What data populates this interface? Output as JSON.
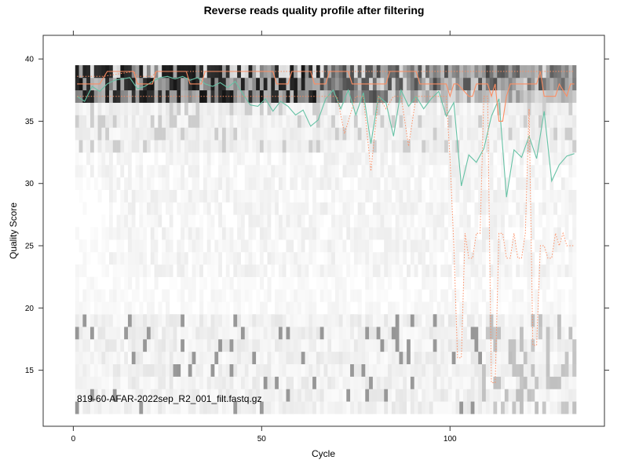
{
  "chart_data": {
    "type": "heatmap",
    "title": "Reverse reads quality profile after filtering",
    "xlabel": "Cycle",
    "ylabel": "Quality Score",
    "annotation": "819-60-AFAR-2022sep_R2_001_filt.fastq.gz",
    "xlim": [
      -8,
      141
    ],
    "ylim": [
      10.5,
      41.9
    ],
    "x_ticks": [
      0,
      50,
      100
    ],
    "y_ticks": [
      15,
      20,
      25,
      30,
      35,
      40
    ],
    "cycles": [
      1,
      133
    ],
    "quality_bins": [
      12,
      13,
      14,
      15,
      16,
      17,
      18,
      19,
      20,
      21,
      22,
      23,
      24,
      25,
      26,
      27,
      28,
      29,
      30,
      31,
      32,
      33,
      34,
      35,
      36,
      37,
      38,
      39
    ],
    "heatmap_shading": "darker cells indicate more reads at a given quality score and cycle",
    "colors": {
      "mean": "#66C2A5",
      "median": "#FC8D62",
      "quartiles": "#FC8D62"
    },
    "series": [
      {
        "key": "mean",
        "style": "solid",
        "x": [
          1,
          3,
          5,
          7,
          9,
          11,
          13,
          15,
          17,
          19,
          21,
          23,
          25,
          27,
          29,
          31,
          33,
          35,
          37,
          39,
          41,
          43,
          45,
          47,
          49,
          51,
          53,
          55,
          57,
          59,
          61,
          63,
          65,
          67,
          69,
          71,
          73,
          75,
          77,
          79,
          81,
          83,
          85,
          87,
          89,
          91,
          93,
          95,
          97,
          99,
          101,
          103,
          105,
          107,
          109,
          111,
          113,
          115,
          117,
          119,
          121,
          123,
          125,
          127,
          129,
          131,
          133
        ],
        "values": [
          37.0,
          36.6,
          37.8,
          37.4,
          38.0,
          38.3,
          38.4,
          38.5,
          37.6,
          37.8,
          38.2,
          38.5,
          38.6,
          38.4,
          38.6,
          38.3,
          38.5,
          38.0,
          37.8,
          38.1,
          37.7,
          38.2,
          37.2,
          36.3,
          36.2,
          36.8,
          35.8,
          36.6,
          36.2,
          35.5,
          35.9,
          34.6,
          35.1,
          36.8,
          37.5,
          36.0,
          37.5,
          35.5,
          37.3,
          33.2,
          37.0,
          36.5,
          33.8,
          37.5,
          36.2,
          37.0,
          36.0,
          36.8,
          37.4,
          35.4,
          36.5,
          29.8,
          32.3,
          31.7,
          32.8,
          35.4,
          36.8,
          28.9,
          32.7,
          32.1,
          33.8,
          32.0,
          35.8,
          30.2,
          31.5,
          32.2,
          32.4
        ]
      },
      {
        "key": "median",
        "style": "solid",
        "x": [
          1,
          7,
          9,
          16,
          17,
          21,
          22,
          30,
          31,
          34,
          35,
          53,
          54,
          57,
          58,
          63,
          64,
          67,
          68,
          73,
          74,
          83,
          84,
          91,
          92,
          99,
          100,
          101,
          102,
          105,
          106,
          107,
          108,
          110,
          111,
          112,
          113,
          114,
          115,
          116,
          117,
          123,
          124,
          125,
          126,
          128,
          129,
          131,
          132,
          133
        ],
        "values": [
          38,
          38,
          39,
          39,
          38,
          38,
          39,
          39,
          38,
          38,
          39,
          39,
          38,
          38,
          39,
          39,
          38,
          38,
          39,
          39,
          38,
          38,
          39,
          39,
          38,
          38,
          37,
          38,
          38,
          37,
          37,
          38,
          38,
          38,
          37,
          38,
          35,
          35,
          37,
          38,
          38,
          38,
          39,
          37,
          37,
          37,
          38,
          37,
          38,
          38
        ]
      },
      {
        "key": "q25",
        "style": "dotted",
        "x": [
          1,
          60,
          63,
          66,
          70,
          72,
          75,
          77,
          79,
          81,
          83,
          85,
          87,
          89,
          91,
          93,
          95,
          97,
          99,
          100,
          101,
          102,
          103,
          104,
          105,
          106,
          107,
          108,
          109,
          110,
          111,
          112,
          113,
          114,
          115,
          116,
          117,
          118,
          119,
          120,
          121,
          122,
          123,
          124,
          125,
          126,
          127,
          128,
          129,
          130,
          131,
          132,
          133
        ],
        "values": [
          37,
          37,
          37,
          37,
          37,
          34,
          37,
          37,
          31,
          37,
          36,
          37,
          37,
          33,
          37,
          37,
          37,
          37,
          37,
          32,
          25,
          16,
          16,
          26,
          24,
          24,
          26,
          26,
          37,
          37,
          14,
          14,
          26,
          26,
          24,
          24,
          26,
          24,
          24,
          26,
          36,
          17,
          17,
          25,
          25,
          24,
          24,
          26,
          25,
          26,
          25,
          25,
          25
        ]
      },
      {
        "key": "q75",
        "style": "dotted",
        "x": [
          1,
          8,
          16,
          17,
          21,
          22,
          31,
          35,
          60,
          133
        ],
        "values": [
          38.6,
          38.6,
          39,
          38.6,
          38.6,
          39,
          39,
          39,
          39,
          39
        ]
      }
    ]
  }
}
